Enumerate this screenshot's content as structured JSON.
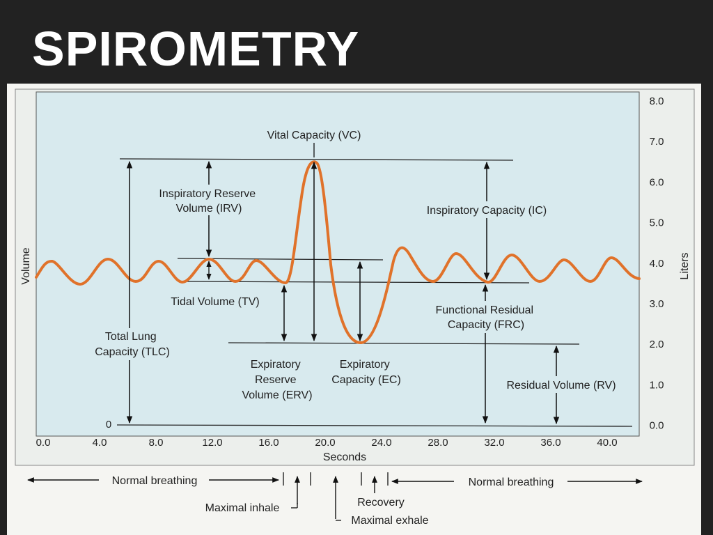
{
  "slide": {
    "title": "SPIROMETRY"
  },
  "colors": {
    "curve": "#e0722a",
    "plot_bg": "#d8eaee",
    "paper": "#f2f2ee",
    "slide_bg": "#222222"
  },
  "axes": {
    "y_left_label": "Volume",
    "y_right_label": "Liters",
    "x_label": "Seconds",
    "zero_label": "0",
    "x_ticks": [
      "0.0",
      "4.0",
      "8.0",
      "12.0",
      "16.0",
      "20.0",
      "24.0",
      "28.0",
      "32.0",
      "36.0",
      "40.0"
    ],
    "y_ticks": [
      "8.0",
      "7.0",
      "6.0",
      "5.0",
      "4.0",
      "3.0",
      "2.0",
      "1.0",
      "0.0"
    ]
  },
  "labels": {
    "vc": "Vital Capacity (VC)",
    "irv": [
      "Inspiratory Reserve",
      "Volume (IRV)"
    ],
    "ic": "Inspiratory Capacity (IC)",
    "tv": "Tidal Volume (TV)",
    "frc": [
      "Functional Residual",
      "Capacity (FRC)"
    ],
    "tlc": [
      "Total Lung",
      "Capacity (TLC)"
    ],
    "erv": [
      "Expiratory",
      "Reserve",
      "Volume (ERV)"
    ],
    "ec": [
      "Expiratory",
      "Capacity (EC)"
    ],
    "rv": "Residual Volume (RV)"
  },
  "phases": {
    "normal_left": "Normal breathing",
    "normal_right": "Normal breathing",
    "maximal_inhale": "Maximal inhale",
    "recovery": "Recovery",
    "maximal_exhale": "Maximal exhale"
  }
}
